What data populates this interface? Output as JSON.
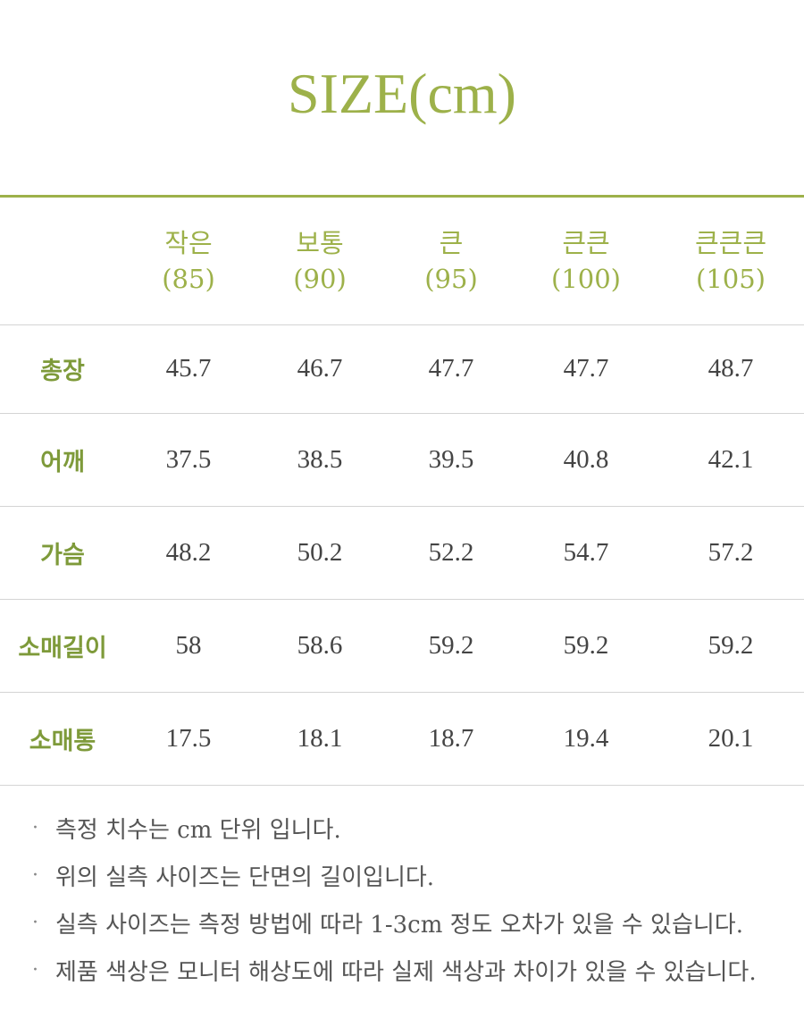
{
  "title": "SIZE(cm)",
  "table": {
    "columns": [
      {
        "name": "작은",
        "size": "(85)"
      },
      {
        "name": "보통",
        "size": "(90)"
      },
      {
        "name": "큰",
        "size": "(95)"
      },
      {
        "name": "큰큰",
        "size": "(100)"
      },
      {
        "name": "큰큰큰",
        "size": "(105)"
      }
    ],
    "rows": [
      {
        "label": "총장",
        "values": [
          "45.7",
          "46.7",
          "47.7",
          "47.7",
          "48.7"
        ]
      },
      {
        "label": "어깨",
        "values": [
          "37.5",
          "38.5",
          "39.5",
          "40.8",
          "42.1"
        ]
      },
      {
        "label": "가슴",
        "values": [
          "48.2",
          "50.2",
          "52.2",
          "54.7",
          "57.2"
        ]
      },
      {
        "label": "소매길이",
        "values": [
          "58",
          "58.6",
          "59.2",
          "59.2",
          "59.2"
        ]
      },
      {
        "label": "소매통",
        "values": [
          "17.5",
          "18.1",
          "18.7",
          "19.4",
          "20.1"
        ]
      }
    ]
  },
  "notes": {
    "bullet": "·",
    "items": [
      "측정 치수는 cm 단위 입니다.",
      "위의 실측 사이즈는 단면의 길이입니다.",
      "실측 사이즈는 측정 방법에 따라 1-3cm 정도 오차가 있을 수 있습니다.",
      "제품 색상은 모니터 해상도에 따라 실제 색상과 차이가 있을 수 있습니다."
    ]
  },
  "colors": {
    "accent": "#9db14a",
    "row_label": "#7e9a3a",
    "text": "#444444",
    "divider": "#d4d4d4"
  }
}
